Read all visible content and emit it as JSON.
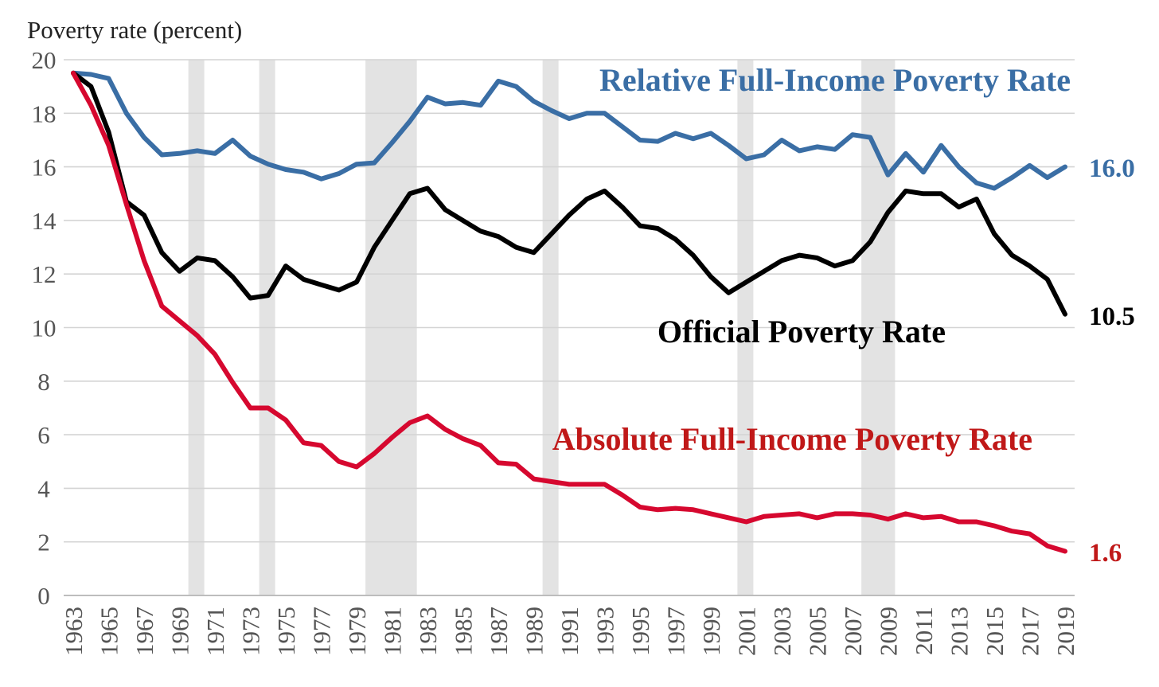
{
  "chart_data": {
    "type": "line",
    "ylabel": "Poverty rate (percent)",
    "ylim": [
      0,
      20
    ],
    "yticks": [
      0,
      2,
      4,
      6,
      8,
      10,
      12,
      14,
      16,
      18,
      20
    ],
    "xlim": [
      1963,
      2019
    ],
    "xticks": [
      1963,
      1965,
      1967,
      1969,
      1971,
      1973,
      1975,
      1977,
      1979,
      1981,
      1983,
      1985,
      1987,
      1989,
      1991,
      1993,
      1995,
      1997,
      1999,
      2001,
      2003,
      2005,
      2007,
      2009,
      2011,
      2013,
      2015,
      2017,
      2019
    ],
    "grid": true,
    "recessions": [
      [
        1970,
        1970.9
      ],
      [
        1974,
        1974.9
      ],
      [
        1980,
        1982.9
      ],
      [
        1990,
        1990.9
      ],
      [
        2001,
        2001.9
      ],
      [
        2008,
        2009.9
      ]
    ],
    "series": [
      {
        "name": "Relative Full-Income Poverty Rate",
        "color": "#3a6ea5",
        "end_label": "16.0",
        "x": [
          1963,
          1964,
          1965,
          1966,
          1967,
          1968,
          1969,
          1970,
          1971,
          1972,
          1973,
          1974,
          1975,
          1976,
          1977,
          1978,
          1979,
          1980,
          1981,
          1982,
          1983,
          1984,
          1985,
          1986,
          1987,
          1988,
          1989,
          1990,
          1991,
          1992,
          1993,
          1994,
          1995,
          1996,
          1997,
          1998,
          1999,
          2000,
          2001,
          2002,
          2003,
          2004,
          2005,
          2006,
          2007,
          2008,
          2009,
          2010,
          2011,
          2012,
          2013,
          2014,
          2015,
          2016,
          2017,
          2018,
          2019
        ],
        "y": [
          19.5,
          19.45,
          19.3,
          18.0,
          17.1,
          16.45,
          16.5,
          16.6,
          16.5,
          17.0,
          16.4,
          16.1,
          15.9,
          15.8,
          15.55,
          15.75,
          16.1,
          16.15,
          16.9,
          17.7,
          18.6,
          18.35,
          18.4,
          18.3,
          19.2,
          19.0,
          18.45,
          18.1,
          17.8,
          18.0,
          18.0,
          17.5,
          17.0,
          16.95,
          17.25,
          17.05,
          17.25,
          16.8,
          16.3,
          16.45,
          17.0,
          16.6,
          16.75,
          16.65,
          17.2,
          17.1,
          15.7,
          16.5,
          15.8,
          16.8,
          16.0,
          15.4,
          15.2,
          15.6,
          16.05,
          15.6,
          16.0
        ]
      },
      {
        "name": "Official Poverty Rate",
        "color": "#000000",
        "end_label": "10.5",
        "x": [
          1963,
          1964,
          1965,
          1966,
          1967,
          1968,
          1969,
          1970,
          1971,
          1972,
          1973,
          1974,
          1975,
          1976,
          1977,
          1978,
          1979,
          1980,
          1981,
          1982,
          1983,
          1984,
          1985,
          1986,
          1987,
          1988,
          1989,
          1990,
          1991,
          1992,
          1993,
          1994,
          1995,
          1996,
          1997,
          1998,
          1999,
          2000,
          2001,
          2002,
          2003,
          2004,
          2005,
          2006,
          2007,
          2008,
          2009,
          2010,
          2011,
          2012,
          2013,
          2014,
          2015,
          2016,
          2017,
          2018,
          2019
        ],
        "y": [
          19.5,
          19.0,
          17.3,
          14.7,
          14.2,
          12.8,
          12.1,
          12.6,
          12.5,
          11.9,
          11.1,
          11.2,
          12.3,
          11.8,
          11.6,
          11.4,
          11.7,
          13.0,
          14.0,
          15.0,
          15.2,
          14.4,
          14.0,
          13.6,
          13.4,
          13.0,
          12.8,
          13.5,
          14.2,
          14.8,
          15.1,
          14.5,
          13.8,
          13.7,
          13.3,
          12.7,
          11.9,
          11.3,
          11.7,
          12.1,
          12.5,
          12.7,
          12.6,
          12.3,
          12.5,
          13.2,
          14.3,
          15.1,
          15.0,
          15.0,
          14.5,
          14.8,
          13.5,
          12.7,
          12.3,
          11.8,
          10.5
        ]
      },
      {
        "name": "Absolute Full-Income Poverty Rate",
        "color": "#d6082f",
        "label_color": "#c01818",
        "end_label": "1.6",
        "x": [
          1963,
          1964,
          1965,
          1966,
          1967,
          1968,
          1969,
          1970,
          1971,
          1972,
          1973,
          1974,
          1975,
          1976,
          1977,
          1978,
          1979,
          1980,
          1981,
          1982,
          1983,
          1984,
          1985,
          1986,
          1987,
          1988,
          1989,
          1990,
          1991,
          1992,
          1993,
          1994,
          1995,
          1996,
          1997,
          1998,
          1999,
          2000,
          2001,
          2002,
          2003,
          2004,
          2005,
          2006,
          2007,
          2008,
          2009,
          2010,
          2011,
          2012,
          2013,
          2014,
          2015,
          2016,
          2017,
          2018,
          2019
        ],
        "y": [
          19.5,
          18.3,
          16.8,
          14.6,
          12.5,
          10.8,
          10.25,
          9.7,
          9.0,
          7.95,
          7.0,
          7.0,
          6.55,
          5.7,
          5.6,
          5.0,
          4.8,
          5.3,
          5.9,
          6.45,
          6.7,
          6.2,
          5.85,
          5.6,
          4.95,
          4.9,
          4.35,
          4.25,
          4.15,
          4.15,
          4.15,
          3.75,
          3.3,
          3.2,
          3.25,
          3.2,
          3.05,
          2.9,
          2.75,
          2.95,
          3.0,
          3.05,
          2.9,
          3.05,
          3.05,
          3.0,
          2.85,
          3.05,
          2.9,
          2.95,
          2.75,
          2.75,
          2.6,
          2.4,
          2.3,
          1.85,
          1.65
        ]
      }
    ]
  }
}
